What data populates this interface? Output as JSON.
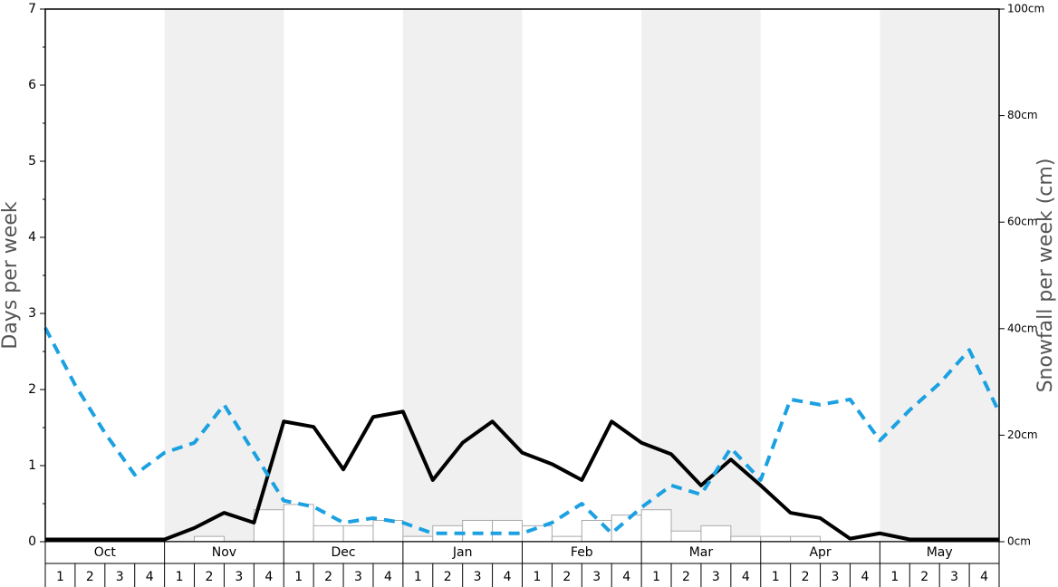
{
  "chart_data": {
    "type": "snow-history",
    "ylabel": "Days per week",
    "y2label": "Snowfall per week (cm)",
    "months": [
      "Oct",
      "Nov",
      "Dec",
      "Jan",
      "Feb",
      "Mar",
      "Apr",
      "May"
    ],
    "weeks": [
      "1",
      "2",
      "3",
      "4"
    ],
    "shaded_months": [
      1,
      3,
      5,
      7
    ],
    "ylim": [
      0,
      7
    ],
    "yticks": [
      0,
      1,
      2,
      3,
      4,
      5,
      6,
      7
    ],
    "yminorticks": [
      0.5,
      1.5,
      2.5,
      3.5,
      4.5,
      5.5,
      6.5
    ],
    "y2lim": [
      0,
      100
    ],
    "y2ticks": [
      {
        "value": 0,
        "label": "0cm"
      },
      {
        "value": 20,
        "label": "20cm"
      },
      {
        "value": 40,
        "label": "40cm"
      },
      {
        "value": 60,
        "label": "60cm"
      },
      {
        "value": 80,
        "label": "80cm"
      },
      {
        "value": 100,
        "label": "100cm"
      }
    ],
    "bars": {
      "axis": "y2",
      "color": "#ffffff",
      "edge": "#aaaaaa",
      "values": [
        0,
        0,
        0,
        0,
        0,
        1,
        0,
        6,
        7,
        3,
        3,
        4,
        1,
        3,
        4,
        4,
        3,
        1,
        4,
        5,
        6,
        2,
        3,
        1,
        1,
        1,
        0,
        0,
        0,
        0,
        0,
        0
      ]
    },
    "series": [
      {
        "color": "#000000",
        "dashed": false,
        "values": [
          0.03,
          0.03,
          0.03,
          0.03,
          0.03,
          0.18,
          0.38,
          0.25,
          1.58,
          1.51,
          0.95,
          1.64,
          1.71,
          0.81,
          1.3,
          1.58,
          1.17,
          1.02,
          0.81,
          1.58,
          1.3,
          1.15,
          0.74,
          1.08,
          0.74,
          0.38,
          0.31,
          0.04,
          0.11,
          0.03,
          0.03,
          0.03,
          0.03
        ]
      },
      {
        "color": "#1ba1e2",
        "dashed": true,
        "values": [
          2.81,
          2.06,
          1.43,
          0.88,
          1.17,
          1.3,
          1.8,
          1.17,
          0.54,
          0.46,
          0.25,
          0.31,
          0.25,
          0.11,
          0.11,
          0.11,
          0.11,
          0.25,
          0.5,
          0.11,
          0.45,
          0.74,
          0.62,
          1.23,
          0.81,
          1.87,
          1.8,
          1.87,
          1.33,
          1.73,
          2.08,
          2.52,
          1.7
        ]
      }
    ]
  }
}
